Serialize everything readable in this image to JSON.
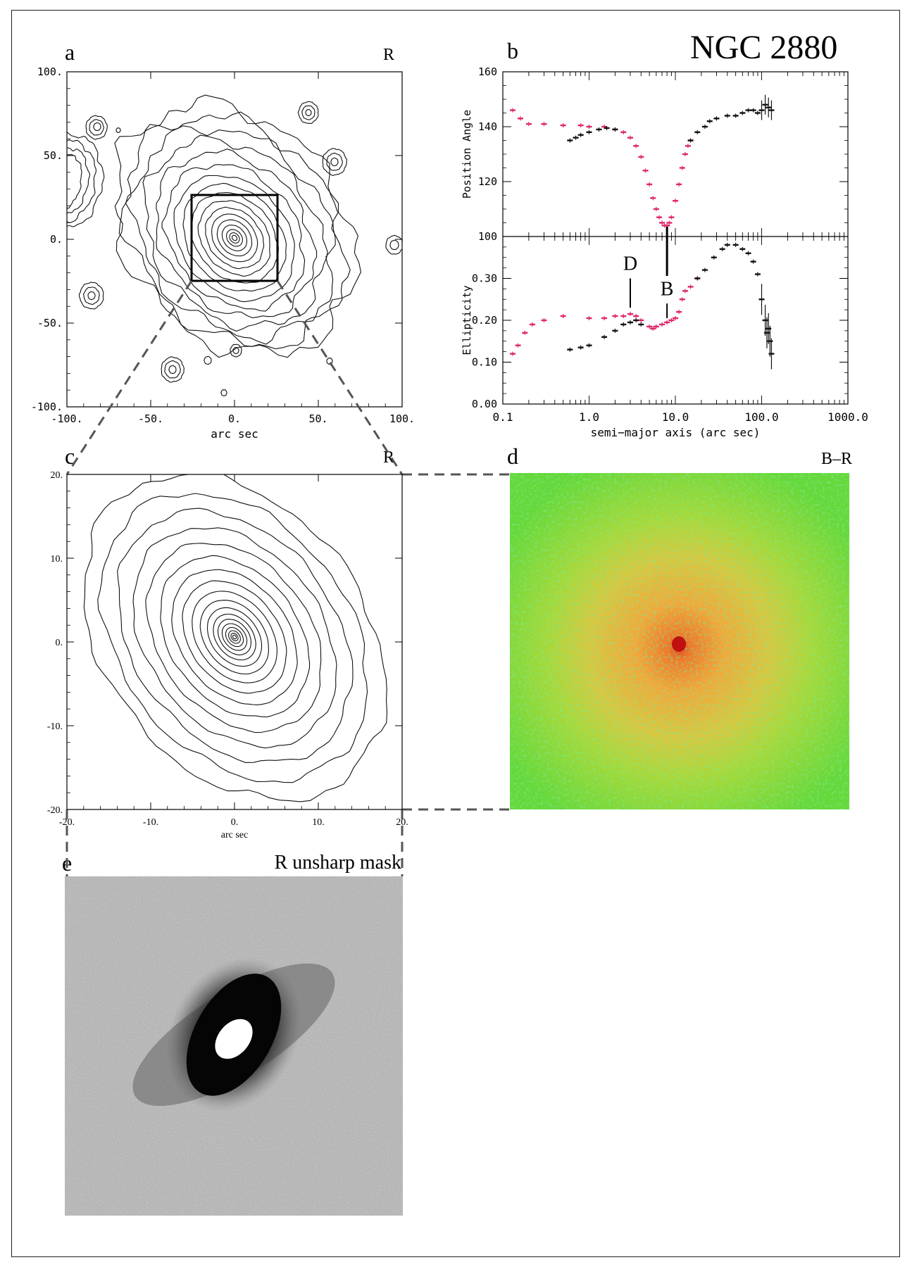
{
  "title": "NGC 2880",
  "panels": {
    "a": {
      "label": "a",
      "band": "R",
      "xlabel": "arc sec",
      "xticks": [
        "-100.",
        "-50.",
        "0.",
        "50.",
        "100."
      ],
      "yticks": [
        "100.",
        "50.",
        "0.",
        "-50.",
        "-100."
      ]
    },
    "b": {
      "label": "b"
    },
    "c": {
      "label": "c",
      "band": "R",
      "xlabel": "arc sec",
      "xticks": [
        "-20.",
        "-10.",
        "0.",
        "10.",
        "20."
      ],
      "yticks": [
        "20.",
        "10.",
        "0.",
        "-10.",
        "-20."
      ]
    },
    "d": {
      "label": "d",
      "band": "B–R"
    },
    "e": {
      "label": "e",
      "band": "R unsharp mask"
    }
  },
  "chart_data": [
    {
      "type": "scatter",
      "panel": "b-top",
      "ylabel": "Position Angle",
      "xlog": true,
      "xlim": [
        0.1,
        1000.0
      ],
      "ylim": [
        100,
        160
      ],
      "yticks": [
        "100",
        "120",
        "140",
        "160"
      ],
      "series": [
        {
          "color": "#e0246b",
          "points": [
            [
              0.13,
              146
            ],
            [
              0.16,
              143
            ],
            [
              0.2,
              141
            ],
            [
              0.3,
              141
            ],
            [
              0.5,
              140.5
            ],
            [
              0.8,
              140.5
            ],
            [
              1.0,
              140
            ],
            [
              1.5,
              140
            ],
            [
              2.0,
              139
            ],
            [
              2.5,
              138
            ],
            [
              3.0,
              136
            ],
            [
              3.5,
              133
            ],
            [
              4.0,
              129
            ],
            [
              4.5,
              124
            ],
            [
              5.0,
              119
            ],
            [
              5.5,
              114
            ],
            [
              6.0,
              110
            ],
            [
              6.5,
              107
            ],
            [
              7.0,
              105
            ],
            [
              7.5,
              104
            ],
            [
              8.0,
              104
            ],
            [
              8.5,
              105
            ],
            [
              9.0,
              107
            ],
            [
              10.0,
              113
            ],
            [
              11.0,
              119
            ],
            [
              12.0,
              125
            ],
            [
              13.0,
              130
            ],
            [
              14.0,
              133
            ],
            [
              15.0,
              135
            ]
          ]
        },
        {
          "color": "#111111",
          "points": [
            [
              0.6,
              135
            ],
            [
              0.7,
              136
            ],
            [
              0.8,
              137
            ],
            [
              1.0,
              138
            ],
            [
              1.3,
              139
            ],
            [
              1.6,
              139.5
            ],
            [
              2.0,
              139
            ],
            [
              15.0,
              135
            ],
            [
              18.0,
              138
            ],
            [
              22.0,
              140
            ],
            [
              25.0,
              142
            ],
            [
              30.0,
              143
            ],
            [
              40.0,
              144
            ],
            [
              50.0,
              144
            ],
            [
              60.0,
              145
            ],
            [
              70.0,
              146
            ],
            [
              80.0,
              146
            ],
            [
              90.0,
              145
            ],
            [
              100.0,
              146
            ],
            [
              110.0,
              148
            ],
            [
              120.0,
              147
            ],
            [
              130.0,
              146
            ]
          ]
        }
      ]
    },
    {
      "type": "scatter",
      "panel": "b-bottom",
      "ylabel": "Ellipticity",
      "xlabel": "semi−major axis (arc sec)",
      "xlog": true,
      "xlim": [
        0.1,
        1000.0
      ],
      "ylim": [
        0.0,
        0.4
      ],
      "xticks": [
        "0.1",
        "1.0",
        "10.0",
        "100.0",
        "1000.0"
      ],
      "yticks": [
        "0.00",
        "0.10",
        "0.20",
        "0.30"
      ],
      "annotations": [
        {
          "text": "D",
          "x": 3.0
        },
        {
          "text": "B",
          "x": 8.0
        }
      ],
      "series": [
        {
          "color": "#e0246b",
          "points": [
            [
              0.13,
              0.12
            ],
            [
              0.15,
              0.14
            ],
            [
              0.18,
              0.17
            ],
            [
              0.22,
              0.19
            ],
            [
              0.3,
              0.2
            ],
            [
              0.5,
              0.21
            ],
            [
              1.0,
              0.205
            ],
            [
              1.5,
              0.205
            ],
            [
              2.0,
              0.21
            ],
            [
              2.5,
              0.21
            ],
            [
              3.0,
              0.215
            ],
            [
              3.5,
              0.21
            ],
            [
              4.0,
              0.2
            ],
            [
              5.0,
              0.185
            ],
            [
              5.5,
              0.18
            ],
            [
              6.0,
              0.185
            ],
            [
              7.0,
              0.19
            ],
            [
              8.0,
              0.195
            ],
            [
              9.0,
              0.2
            ],
            [
              10.0,
              0.205
            ],
            [
              11.0,
              0.22
            ],
            [
              12.0,
              0.25
            ],
            [
              13.0,
              0.27
            ],
            [
              15.0,
              0.28
            ],
            [
              18.0,
              0.3
            ]
          ]
        },
        {
          "color": "#111111",
          "points": [
            [
              0.6,
              0.13
            ],
            [
              0.8,
              0.135
            ],
            [
              1.0,
              0.14
            ],
            [
              1.5,
              0.16
            ],
            [
              2.0,
              0.175
            ],
            [
              2.5,
              0.19
            ],
            [
              3.0,
              0.195
            ],
            [
              3.5,
              0.2
            ],
            [
              4.0,
              0.19
            ],
            [
              18.0,
              0.3
            ],
            [
              22.0,
              0.32
            ],
            [
              28.0,
              0.35
            ],
            [
              35.0,
              0.37
            ],
            [
              40.0,
              0.38
            ],
            [
              50.0,
              0.38
            ],
            [
              60.0,
              0.37
            ],
            [
              70.0,
              0.36
            ],
            [
              80.0,
              0.34
            ],
            [
              90.0,
              0.31
            ],
            [
              100.0,
              0.25
            ],
            [
              110.0,
              0.2
            ],
            [
              115.0,
              0.17
            ],
            [
              120.0,
              0.18
            ],
            [
              125.0,
              0.15
            ],
            [
              130.0,
              0.12
            ]
          ]
        }
      ]
    }
  ]
}
